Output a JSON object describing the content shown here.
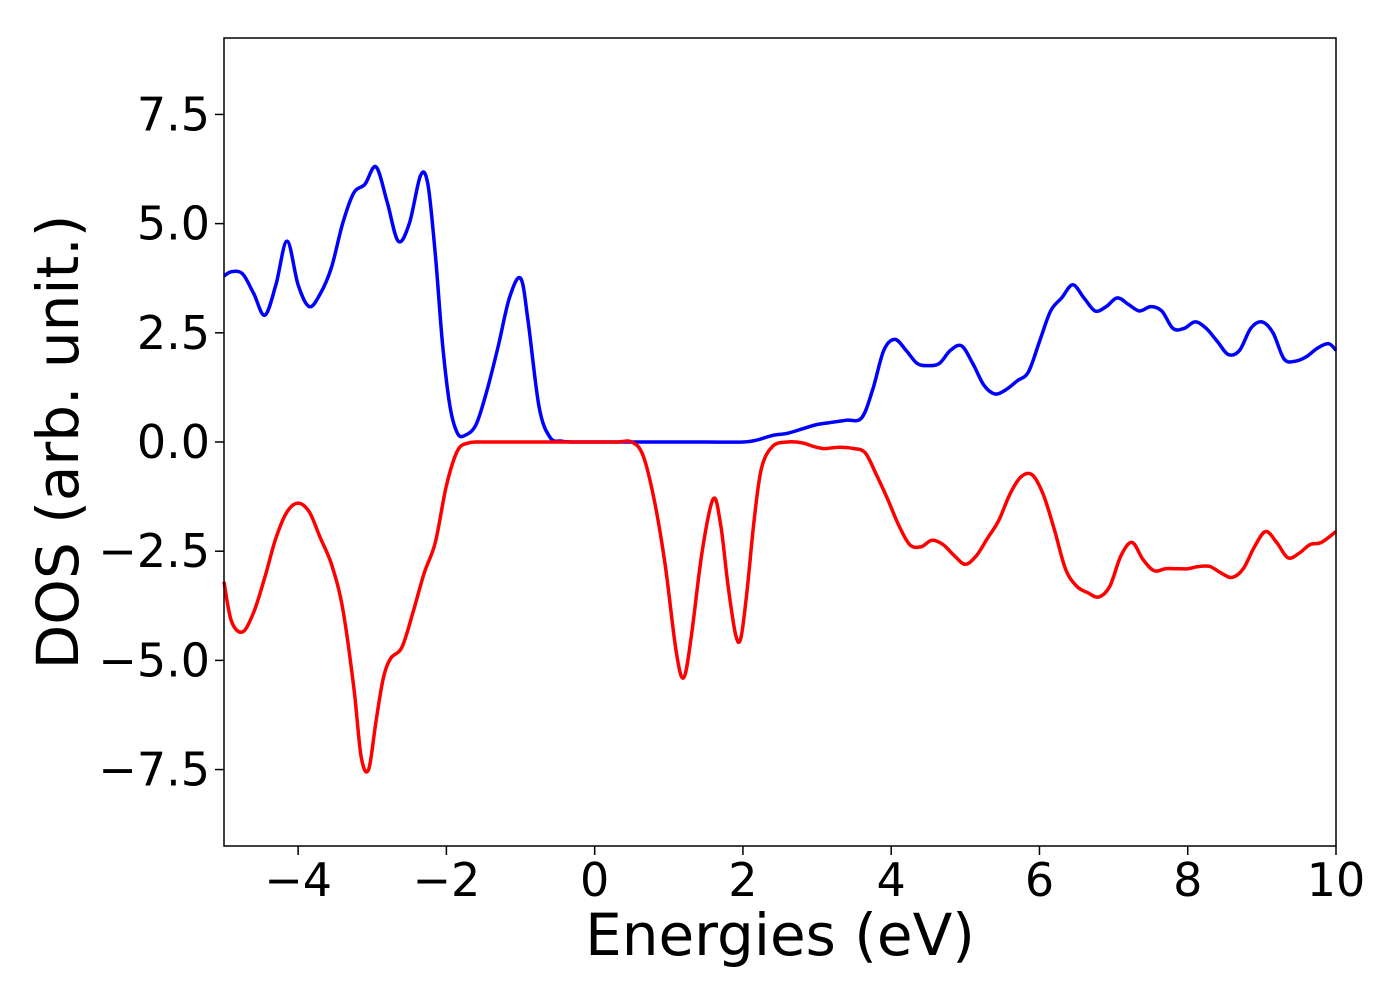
{
  "chart_data": {
    "type": "line",
    "title": "",
    "xlabel": "Energies (eV)",
    "ylabel": "DOS (arb. unit.)",
    "xlim": [
      -5,
      10
    ],
    "ylim": [
      -9.25,
      9.25
    ],
    "grid": false,
    "xticks": [
      -4,
      -2,
      0,
      2,
      4,
      6,
      8,
      10
    ],
    "xtick_labels": [
      "−4",
      "−2",
      "0",
      "2",
      "4",
      "6",
      "8",
      "10"
    ],
    "yticks": [
      -7.5,
      -5.0,
      -2.5,
      0.0,
      2.5,
      5.0,
      7.5
    ],
    "ytick_labels": [
      "−7.5",
      "−5.0",
      "−2.5",
      "0.0",
      "2.5",
      "5.0",
      "7.5"
    ],
    "series": [
      {
        "color": "#0000ff",
        "x": [
          -5.0,
          -4.9,
          -4.75,
          -4.6,
          -4.45,
          -4.3,
          -4.15,
          -4.0,
          -3.85,
          -3.7,
          -3.55,
          -3.4,
          -3.25,
          -3.1,
          -2.95,
          -2.8,
          -2.65,
          -2.5,
          -2.35,
          -2.25,
          -2.15,
          -2.05,
          -1.95,
          -1.85,
          -1.75,
          -1.6,
          -1.45,
          -1.3,
          -1.15,
          -1.0,
          -0.9,
          -0.75,
          -0.6,
          -0.45,
          -0.3,
          0.0,
          0.5,
          1.0,
          1.5,
          2.0,
          2.2,
          2.4,
          2.6,
          2.8,
          3.0,
          3.2,
          3.4,
          3.6,
          3.75,
          3.9,
          4.05,
          4.2,
          4.35,
          4.5,
          4.65,
          4.8,
          4.95,
          5.1,
          5.25,
          5.4,
          5.55,
          5.7,
          5.85,
          6.0,
          6.15,
          6.3,
          6.45,
          6.6,
          6.75,
          6.9,
          7.05,
          7.2,
          7.35,
          7.5,
          7.65,
          7.8,
          7.95,
          8.1,
          8.25,
          8.4,
          8.55,
          8.7,
          8.85,
          9.0,
          9.15,
          9.3,
          9.45,
          9.6,
          9.75,
          9.9,
          10.0
        ],
        "y": [
          3.8,
          3.9,
          3.85,
          3.4,
          2.9,
          3.6,
          4.6,
          3.6,
          3.1,
          3.4,
          4.0,
          5.0,
          5.7,
          5.9,
          6.3,
          5.5,
          4.6,
          5.0,
          6.1,
          5.9,
          4.3,
          2.2,
          0.8,
          0.2,
          0.15,
          0.4,
          1.2,
          2.2,
          3.3,
          3.75,
          2.8,
          0.8,
          0.1,
          0.02,
          0.0,
          0.0,
          0.0,
          0.0,
          0.0,
          0.0,
          0.05,
          0.15,
          0.2,
          0.3,
          0.4,
          0.45,
          0.5,
          0.55,
          1.2,
          2.1,
          2.35,
          2.1,
          1.8,
          1.75,
          1.8,
          2.1,
          2.2,
          1.8,
          1.3,
          1.1,
          1.2,
          1.4,
          1.6,
          2.3,
          3.0,
          3.3,
          3.6,
          3.3,
          3.0,
          3.1,
          3.3,
          3.15,
          3.0,
          3.1,
          3.0,
          2.6,
          2.6,
          2.75,
          2.6,
          2.3,
          2.0,
          2.1,
          2.6,
          2.75,
          2.5,
          1.9,
          1.85,
          1.95,
          2.15,
          2.25,
          2.1
        ]
      },
      {
        "color": "#ff0000",
        "x": [
          -5.0,
          -4.9,
          -4.75,
          -4.6,
          -4.45,
          -4.3,
          -4.15,
          -4.0,
          -3.85,
          -3.7,
          -3.55,
          -3.4,
          -3.25,
          -3.15,
          -3.05,
          -2.95,
          -2.85,
          -2.75,
          -2.6,
          -2.45,
          -2.3,
          -2.15,
          -2.0,
          -1.85,
          -1.7,
          -1.5,
          -1.0,
          -0.5,
          0.0,
          0.3,
          0.5,
          0.65,
          0.8,
          0.95,
          1.1,
          1.2,
          1.3,
          1.45,
          1.6,
          1.7,
          1.8,
          1.9,
          1.97,
          2.05,
          2.15,
          2.25,
          2.4,
          2.6,
          2.8,
          2.95,
          3.1,
          3.3,
          3.5,
          3.65,
          3.8,
          3.95,
          4.1,
          4.25,
          4.4,
          4.55,
          4.7,
          4.85,
          5.0,
          5.15,
          5.3,
          5.45,
          5.6,
          5.75,
          5.9,
          6.05,
          6.2,
          6.35,
          6.5,
          6.65,
          6.8,
          6.95,
          7.1,
          7.25,
          7.4,
          7.55,
          7.7,
          7.85,
          8.0,
          8.15,
          8.3,
          8.45,
          8.6,
          8.75,
          8.9,
          9.05,
          9.2,
          9.35,
          9.5,
          9.65,
          9.8,
          10.0
        ],
        "y": [
          -3.2,
          -4.1,
          -4.35,
          -3.9,
          -3.1,
          -2.2,
          -1.6,
          -1.4,
          -1.6,
          -2.2,
          -2.8,
          -3.8,
          -5.6,
          -7.2,
          -7.5,
          -6.4,
          -5.4,
          -4.95,
          -4.7,
          -3.9,
          -3.0,
          -2.3,
          -1.0,
          -0.2,
          -0.02,
          0.0,
          0.0,
          0.0,
          0.0,
          0.0,
          0.0,
          -0.3,
          -1.3,
          -2.8,
          -4.8,
          -5.4,
          -4.5,
          -2.5,
          -1.3,
          -1.9,
          -3.3,
          -4.4,
          -4.5,
          -3.5,
          -1.8,
          -0.6,
          -0.1,
          0.0,
          -0.02,
          -0.1,
          -0.15,
          -0.12,
          -0.15,
          -0.25,
          -0.75,
          -1.3,
          -1.9,
          -2.35,
          -2.4,
          -2.25,
          -2.35,
          -2.6,
          -2.8,
          -2.6,
          -2.2,
          -1.8,
          -1.2,
          -0.8,
          -0.75,
          -1.2,
          -2.0,
          -2.9,
          -3.3,
          -3.45,
          -3.55,
          -3.3,
          -2.6,
          -2.3,
          -2.7,
          -2.95,
          -2.9,
          -2.9,
          -2.9,
          -2.85,
          -2.85,
          -3.0,
          -3.1,
          -2.9,
          -2.4,
          -2.05,
          -2.3,
          -2.65,
          -2.55,
          -2.35,
          -2.3,
          -2.05
        ]
      }
    ]
  }
}
